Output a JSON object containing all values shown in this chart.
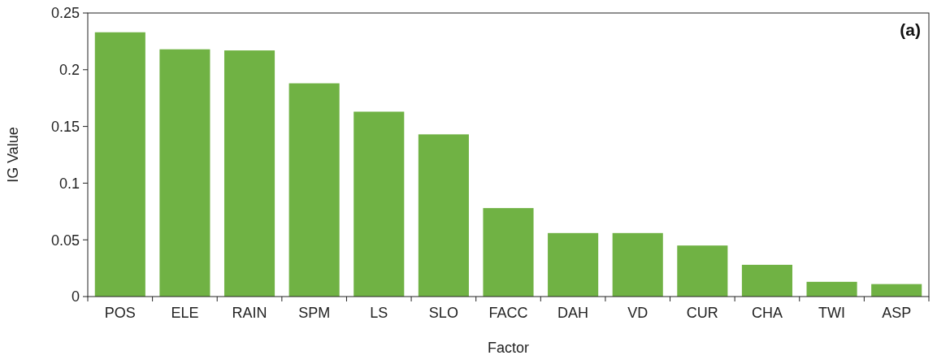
{
  "chart_data": {
    "type": "bar",
    "xlabel": "Factor",
    "ylabel": "IG Value",
    "annotations": [
      "(a)"
    ],
    "categories": [
      "POS",
      "ELE",
      "RAIN",
      "SPM",
      "LS",
      "SLO",
      "FACC",
      "DAH",
      "VD",
      "CUR",
      "CHA",
      "TWI",
      "ASP"
    ],
    "values": [
      0.233,
      0.218,
      0.217,
      0.188,
      0.163,
      0.143,
      0.078,
      0.056,
      0.056,
      0.045,
      0.028,
      0.013,
      0.011
    ],
    "color": "#70b244",
    "ylim": [
      0,
      0.25
    ],
    "yticks": [
      0,
      0.05,
      0.1,
      0.15,
      0.2,
      0.25
    ],
    "grid": false
  }
}
